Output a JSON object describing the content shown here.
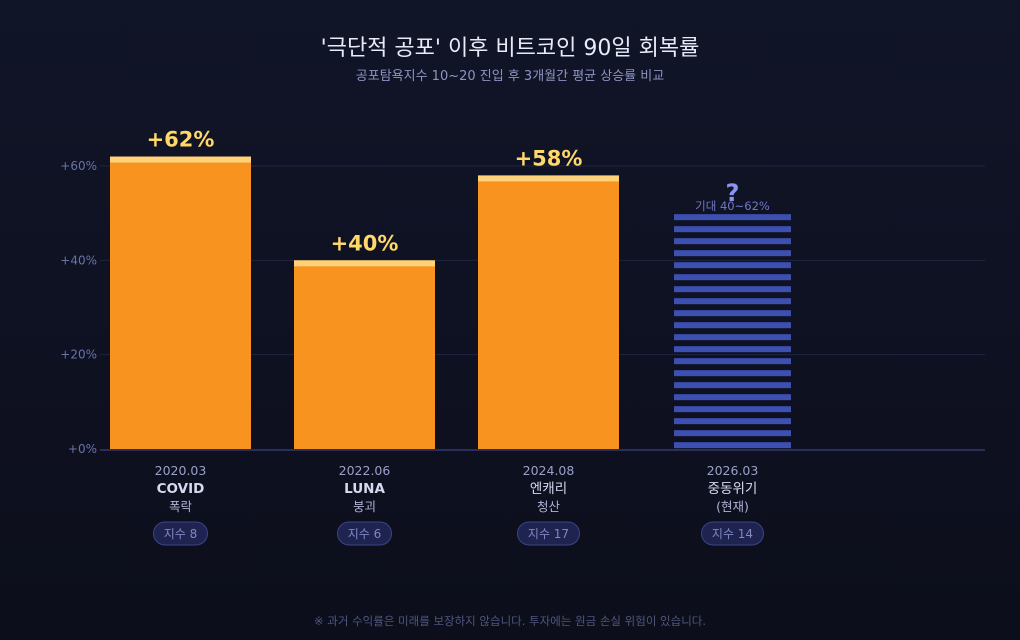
{
  "title": "'극단적 공포' 이후 비트코인 90일 회복률",
  "subtitle": "공포탐욕지수 10~20 진입 후 3개월간 평균 상승률 비교",
  "footnote": "※ 과거 수익률은 미래를 보장하지 않습니다. 투자에는 원금 손실 위험이 있습니다.",
  "colors": {
    "bar": "#f7931e",
    "cap": "#ffd27a",
    "label": "#ffd76a",
    "projected": "#3d4fb0",
    "question": "#8a94f0",
    "axis": "#2a2f5a",
    "grid": "#1f2440",
    "badge_bg": "#1e2350",
    "badge_border": "#3c4488"
  },
  "chart_data": {
    "type": "bar",
    "ylim": [
      0,
      60
    ],
    "yticks": [
      0,
      20,
      40,
      60
    ],
    "ytick_labels": [
      "+0%",
      "+20%",
      "+40%",
      "+60%"
    ],
    "grid": true,
    "categories": [
      {
        "date": "2020.03",
        "line1": "COVID",
        "line2": "폭락",
        "badge": "지수 8",
        "bold": true
      },
      {
        "date": "2022.06",
        "line1": "LUNA",
        "line2": "붕괴",
        "badge": "지수 6",
        "bold": true
      },
      {
        "date": "2024.08",
        "line1": "엔캐리",
        "line2": "청산",
        "badge": "지수 17",
        "bold": false
      },
      {
        "date": "2026.03",
        "line1": "중동위기",
        "line2": "(현재)",
        "badge": "지수 14",
        "bold": false
      }
    ],
    "values": [
      62,
      40,
      58,
      50
    ],
    "value_labels": [
      "+62%",
      "+40%",
      "+58%",
      "?"
    ],
    "projected": [
      false,
      false,
      false,
      true
    ],
    "projected_note": "기대 40~62%"
  }
}
